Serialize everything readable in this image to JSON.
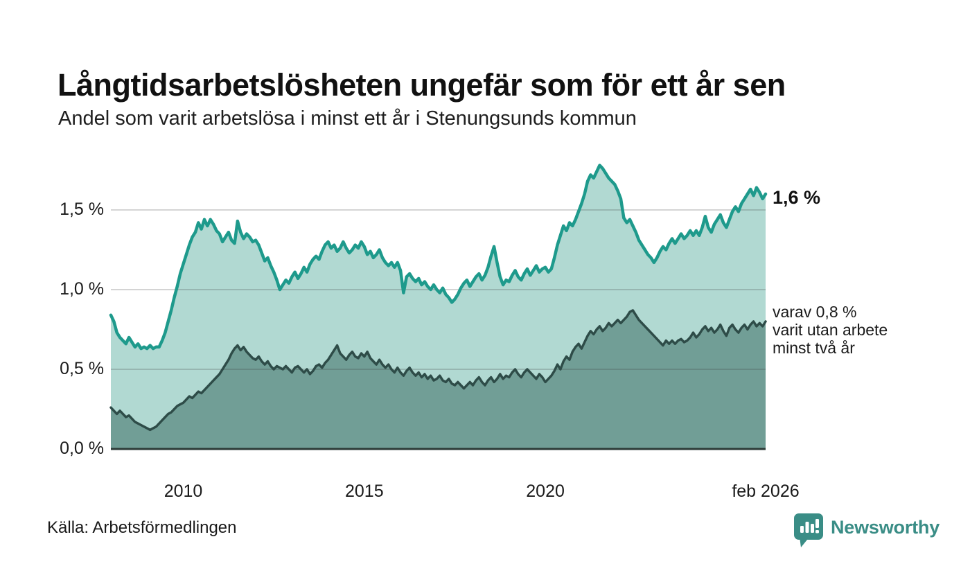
{
  "header": {
    "title": "Långtidsarbetslösheten ungefär som för ett år sen",
    "subtitle": "Andel som varit arbetslösa i minst ett år i Stenungsunds kommun"
  },
  "annotations": {
    "end_value_total": "1,6 %",
    "end_note_line1": "varav 0,8 %",
    "end_note_line2": "varit utan arbete",
    "end_note_line3": "minst två år"
  },
  "footer": {
    "source": "Källa: Arbetsförmedlingen",
    "brand": "Newsworthy"
  },
  "colors": {
    "line_total": "#1e9a8c",
    "fill_total": "#b1d9d2",
    "line_two_years": "#2e4c48",
    "fill_two_years": "#719e96",
    "gridline_over": "rgba(60,60,60,0.22)",
    "baseline": "#2c3a37",
    "brand_teal": "#3a8d86",
    "text": "#161616"
  },
  "chart_data": {
    "type": "area",
    "title": "Långtidsarbetslösheten ungefär som för ett år sen",
    "subtitle": "Andel som varit arbetslösa i minst ett år i Stenungsunds kommun",
    "unit": "%",
    "x_start_year": 2008.0,
    "x_end_year": 2026.083,
    "x_step": "monthly",
    "ylim": [
      0,
      1.85
    ],
    "yticks": [
      {
        "label": "0,0 %",
        "value": 0.0
      },
      {
        "label": "0,5 %",
        "value": 0.5
      },
      {
        "label": "1,0 %",
        "value": 1.0
      },
      {
        "label": "1,5 %",
        "value": 1.5
      }
    ],
    "xticks": [
      {
        "label": "2010",
        "year": 2010.0
      },
      {
        "label": "2015",
        "year": 2015.0
      },
      {
        "label": "2020",
        "year": 2020.0
      },
      {
        "label": "feb 2026",
        "year": 2026.083
      }
    ],
    "series": [
      {
        "name": "Andel arbetslösa minst ett år",
        "end_value": 1.6,
        "values": [
          0.84,
          0.8,
          0.73,
          0.7,
          0.68,
          0.66,
          0.7,
          0.67,
          0.64,
          0.66,
          0.63,
          0.64,
          0.63,
          0.65,
          0.63,
          0.64,
          0.64,
          0.68,
          0.73,
          0.8,
          0.87,
          0.95,
          1.02,
          1.1,
          1.16,
          1.22,
          1.28,
          1.33,
          1.36,
          1.42,
          1.38,
          1.44,
          1.4,
          1.44,
          1.41,
          1.37,
          1.35,
          1.3,
          1.33,
          1.36,
          1.31,
          1.29,
          1.43,
          1.36,
          1.32,
          1.35,
          1.33,
          1.3,
          1.31,
          1.28,
          1.23,
          1.18,
          1.2,
          1.15,
          1.11,
          1.06,
          1.0,
          1.03,
          1.06,
          1.04,
          1.08,
          1.11,
          1.07,
          1.1,
          1.14,
          1.11,
          1.16,
          1.19,
          1.21,
          1.19,
          1.24,
          1.28,
          1.3,
          1.26,
          1.28,
          1.24,
          1.26,
          1.3,
          1.26,
          1.23,
          1.25,
          1.28,
          1.26,
          1.3,
          1.27,
          1.22,
          1.24,
          1.2,
          1.22,
          1.25,
          1.2,
          1.17,
          1.15,
          1.17,
          1.14,
          1.17,
          1.12,
          0.98,
          1.08,
          1.1,
          1.07,
          1.05,
          1.07,
          1.03,
          1.05,
          1.02,
          1.0,
          1.03,
          1.0,
          0.98,
          1.01,
          0.97,
          0.95,
          0.92,
          0.94,
          0.97,
          1.01,
          1.04,
          1.06,
          1.02,
          1.05,
          1.08,
          1.1,
          1.06,
          1.09,
          1.14,
          1.21,
          1.27,
          1.17,
          1.08,
          1.03,
          1.06,
          1.05,
          1.09,
          1.12,
          1.08,
          1.06,
          1.1,
          1.13,
          1.09,
          1.12,
          1.15,
          1.11,
          1.13,
          1.14,
          1.11,
          1.13,
          1.2,
          1.28,
          1.34,
          1.4,
          1.37,
          1.42,
          1.4,
          1.44,
          1.49,
          1.54,
          1.6,
          1.68,
          1.72,
          1.7,
          1.74,
          1.78,
          1.76,
          1.73,
          1.7,
          1.68,
          1.66,
          1.62,
          1.57,
          1.45,
          1.42,
          1.44,
          1.4,
          1.36,
          1.31,
          1.28,
          1.25,
          1.22,
          1.2,
          1.17,
          1.2,
          1.24,
          1.27,
          1.25,
          1.29,
          1.32,
          1.29,
          1.32,
          1.35,
          1.32,
          1.34,
          1.37,
          1.34,
          1.37,
          1.34,
          1.39,
          1.46,
          1.39,
          1.36,
          1.41,
          1.44,
          1.47,
          1.42,
          1.39,
          1.44,
          1.49,
          1.52,
          1.49,
          1.54,
          1.57,
          1.6,
          1.63,
          1.59,
          1.64,
          1.61,
          1.57,
          1.6
        ]
      },
      {
        "name": "varav utan arbete minst två år",
        "end_value": 0.8,
        "values": [
          0.26,
          0.24,
          0.22,
          0.24,
          0.22,
          0.2,
          0.21,
          0.19,
          0.17,
          0.16,
          0.15,
          0.14,
          0.13,
          0.12,
          0.13,
          0.14,
          0.16,
          0.18,
          0.2,
          0.22,
          0.23,
          0.25,
          0.27,
          0.28,
          0.29,
          0.31,
          0.33,
          0.32,
          0.34,
          0.36,
          0.35,
          0.37,
          0.39,
          0.41,
          0.43,
          0.45,
          0.47,
          0.5,
          0.53,
          0.56,
          0.6,
          0.63,
          0.65,
          0.62,
          0.64,
          0.61,
          0.59,
          0.57,
          0.56,
          0.58,
          0.55,
          0.53,
          0.55,
          0.52,
          0.5,
          0.52,
          0.51,
          0.5,
          0.52,
          0.5,
          0.48,
          0.51,
          0.52,
          0.5,
          0.48,
          0.5,
          0.47,
          0.49,
          0.52,
          0.53,
          0.51,
          0.54,
          0.56,
          0.59,
          0.62,
          0.65,
          0.6,
          0.58,
          0.56,
          0.59,
          0.61,
          0.58,
          0.57,
          0.6,
          0.58,
          0.61,
          0.57,
          0.55,
          0.53,
          0.56,
          0.53,
          0.51,
          0.53,
          0.5,
          0.48,
          0.51,
          0.48,
          0.46,
          0.49,
          0.51,
          0.48,
          0.46,
          0.48,
          0.45,
          0.47,
          0.44,
          0.46,
          0.43,
          0.44,
          0.46,
          0.43,
          0.42,
          0.44,
          0.41,
          0.4,
          0.42,
          0.4,
          0.38,
          0.4,
          0.42,
          0.4,
          0.43,
          0.45,
          0.42,
          0.4,
          0.43,
          0.45,
          0.42,
          0.44,
          0.47,
          0.44,
          0.46,
          0.45,
          0.48,
          0.5,
          0.47,
          0.45,
          0.48,
          0.5,
          0.48,
          0.46,
          0.44,
          0.47,
          0.45,
          0.42,
          0.44,
          0.46,
          0.49,
          0.53,
          0.5,
          0.55,
          0.58,
          0.56,
          0.61,
          0.64,
          0.66,
          0.63,
          0.67,
          0.71,
          0.74,
          0.72,
          0.75,
          0.77,
          0.74,
          0.76,
          0.79,
          0.77,
          0.79,
          0.81,
          0.79,
          0.81,
          0.83,
          0.86,
          0.87,
          0.84,
          0.81,
          0.79,
          0.77,
          0.75,
          0.73,
          0.71,
          0.69,
          0.67,
          0.65,
          0.68,
          0.66,
          0.68,
          0.66,
          0.68,
          0.69,
          0.67,
          0.68,
          0.7,
          0.73,
          0.7,
          0.72,
          0.75,
          0.77,
          0.74,
          0.76,
          0.73,
          0.75,
          0.78,
          0.74,
          0.71,
          0.76,
          0.78,
          0.75,
          0.73,
          0.76,
          0.78,
          0.75,
          0.78,
          0.8,
          0.77,
          0.79,
          0.77,
          0.8
        ]
      }
    ]
  }
}
